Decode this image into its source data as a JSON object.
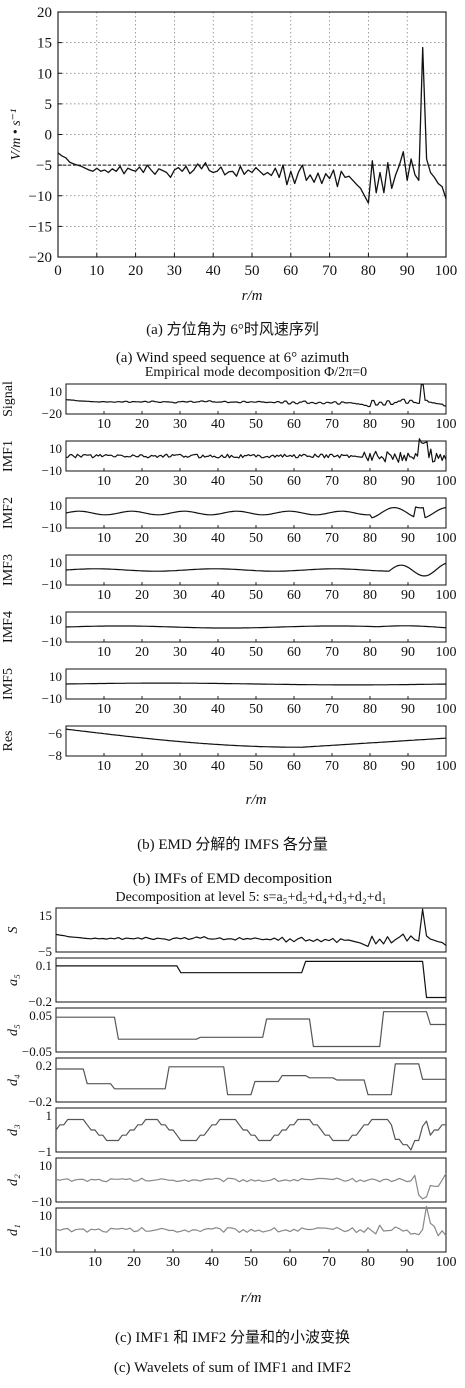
{
  "captions": {
    "a_cn": "(a) 方位角为 6°时风速序列",
    "a_en": "(a) Wind speed sequence at 6° azimuth",
    "b_cn": "(b) EMD 分解的 IMFS 各分量",
    "b_en": "(b) IMFs of EMD decomposition",
    "c_cn": "(c) IMF1 和 IMF2 分量和的小波变换",
    "c_en": "(c) Wavelets of sum of IMF1 and IMF2"
  },
  "chart_data": [
    {
      "type": "line",
      "title": "",
      "xlabel": "r/m",
      "ylabel": "V/m • s⁻¹",
      "xlim": [
        0,
        100
      ],
      "ylim": [
        -20,
        20
      ],
      "xticks": [
        0,
        10,
        20,
        30,
        40,
        50,
        60,
        70,
        80,
        90,
        100
      ],
      "yticks": [
        -20,
        -15,
        -10,
        -5,
        0,
        5,
        10,
        15,
        20
      ],
      "grid": true,
      "reference_line": -5,
      "series": [
        {
          "x": [
            0,
            1,
            2,
            3,
            4,
            5,
            6,
            7,
            8,
            9,
            10,
            11,
            12,
            13,
            14,
            15,
            16,
            17,
            18,
            19,
            20,
            21,
            22,
            23,
            24,
            25,
            26,
            27,
            28,
            29,
            30,
            31,
            32,
            33,
            34,
            35,
            36,
            37,
            38,
            39,
            40,
            41,
            42,
            43,
            44,
            45,
            46,
            47,
            48,
            49,
            50,
            51,
            52,
            53,
            54,
            55,
            56,
            57,
            58,
            59,
            60,
            61,
            62,
            63,
            64,
            65,
            66,
            67,
            68,
            69,
            70,
            71,
            72,
            73,
            74,
            75,
            76,
            77,
            78,
            79,
            80,
            81,
            82,
            83,
            84,
            85,
            86,
            87,
            88,
            89,
            90,
            91,
            92,
            93,
            94,
            95,
            96,
            97,
            98,
            99,
            100
          ],
          "values": [
            -3,
            -3.5,
            -3.8,
            -4.5,
            -4.8,
            -5,
            -5.2,
            -5.5,
            -5.8,
            -6,
            -5.5,
            -6,
            -5.8,
            -6.2,
            -5.6,
            -6,
            -5.2,
            -6.4,
            -5.5,
            -5.8,
            -6,
            -5.3,
            -6.2,
            -5,
            -5.8,
            -6.5,
            -5.6,
            -5.9,
            -6.2,
            -7,
            -5.8,
            -5.4,
            -6,
            -5.2,
            -6.4,
            -5.8,
            -4.8,
            -5.6,
            -4.6,
            -5.9,
            -6.2,
            -6,
            -5.3,
            -6.6,
            -6.1,
            -6,
            -6.8,
            -5.2,
            -6.5,
            -5.8,
            -6.2,
            -5.4,
            -6,
            -6.6,
            -6.2,
            -6.7,
            -5.5,
            -7,
            -5,
            -8.2,
            -6,
            -8,
            -6.1,
            -5,
            -7.5,
            -6.6,
            -7.8,
            -6.3,
            -8,
            -6.4,
            -7.2,
            -5.8,
            -8.5,
            -6,
            -7,
            -6.8,
            -7.5,
            -8.2,
            -8.8,
            -10,
            -11.2,
            -4.3,
            -9.5,
            -6.2,
            -9.5,
            -4.6,
            -8.8,
            -6.6,
            -5,
            -2.8,
            -7.5,
            -4,
            -6.6,
            -7.5,
            14.2,
            -4,
            -6.2,
            -7,
            -8,
            -8.5,
            -10.5
          ]
        }
      ]
    },
    {
      "type": "line",
      "title": "Empirical mode decomposition Φ/2π=0",
      "xlabel": "r/m",
      "xlim": [
        0,
        100
      ],
      "xticks": [
        10,
        20,
        30,
        40,
        50,
        60,
        70,
        80,
        90,
        100
      ],
      "panels": [
        {
          "label": "Signal",
          "yticks": [
            "10",
            "−20"
          ],
          "ylim": [
            -20,
            15
          ]
        },
        {
          "label": "IMF1",
          "yticks": [
            "10",
            "−10"
          ],
          "ylim": [
            -10,
            10
          ]
        },
        {
          "label": "IMF2",
          "yticks": [
            "10",
            "−10"
          ],
          "ylim": [
            -10,
            10
          ]
        },
        {
          "label": "IMF3",
          "yticks": [
            "10",
            "−10"
          ],
          "ylim": [
            -10,
            10
          ]
        },
        {
          "label": "IMF4",
          "yticks": [
            "10",
            "−10"
          ],
          "ylim": [
            -10,
            10
          ]
        },
        {
          "label": "IMF5",
          "yticks": [
            "10",
            "−10"
          ],
          "ylim": [
            -10,
            10
          ]
        },
        {
          "label": "Res",
          "yticks": [
            "−6",
            "−8"
          ],
          "ylim": [
            -8.2,
            -5.8
          ]
        }
      ]
    },
    {
      "type": "line",
      "title": "Decomposition at level 5: s=a₅+d₅+d₄+d₃+d₂+d₁",
      "xlabel": "r/m",
      "xlim": [
        0,
        100
      ],
      "xticks": [
        10,
        20,
        30,
        40,
        50,
        60,
        70,
        80,
        90,
        100
      ],
      "panels": [
        {
          "label": "S",
          "yticks": [
            "15",
            "−5"
          ],
          "ylim": [
            -12,
            18
          ]
        },
        {
          "label": "a₅",
          "yticks": [
            "0.1",
            "−0.2"
          ],
          "ylim": [
            -0.24,
            0.15
          ]
        },
        {
          "label": "d₅",
          "yticks": [
            "0.05",
            "−0.05"
          ],
          "ylim": [
            -0.06,
            0.06
          ]
        },
        {
          "label": "d₄",
          "yticks": [
            "0.2",
            "−0.2"
          ],
          "ylim": [
            -0.3,
            0.3
          ]
        },
        {
          "label": "d₃",
          "yticks": [
            "1",
            "−1"
          ],
          "ylim": [
            -1.4,
            1.4
          ]
        },
        {
          "label": "d₂",
          "yticks": [
            "10",
            "−10"
          ],
          "ylim": [
            -13,
            13
          ]
        },
        {
          "label": "d₁",
          "yticks": [
            "10",
            "−10"
          ],
          "ylim": [
            -13,
            13
          ]
        }
      ]
    }
  ]
}
